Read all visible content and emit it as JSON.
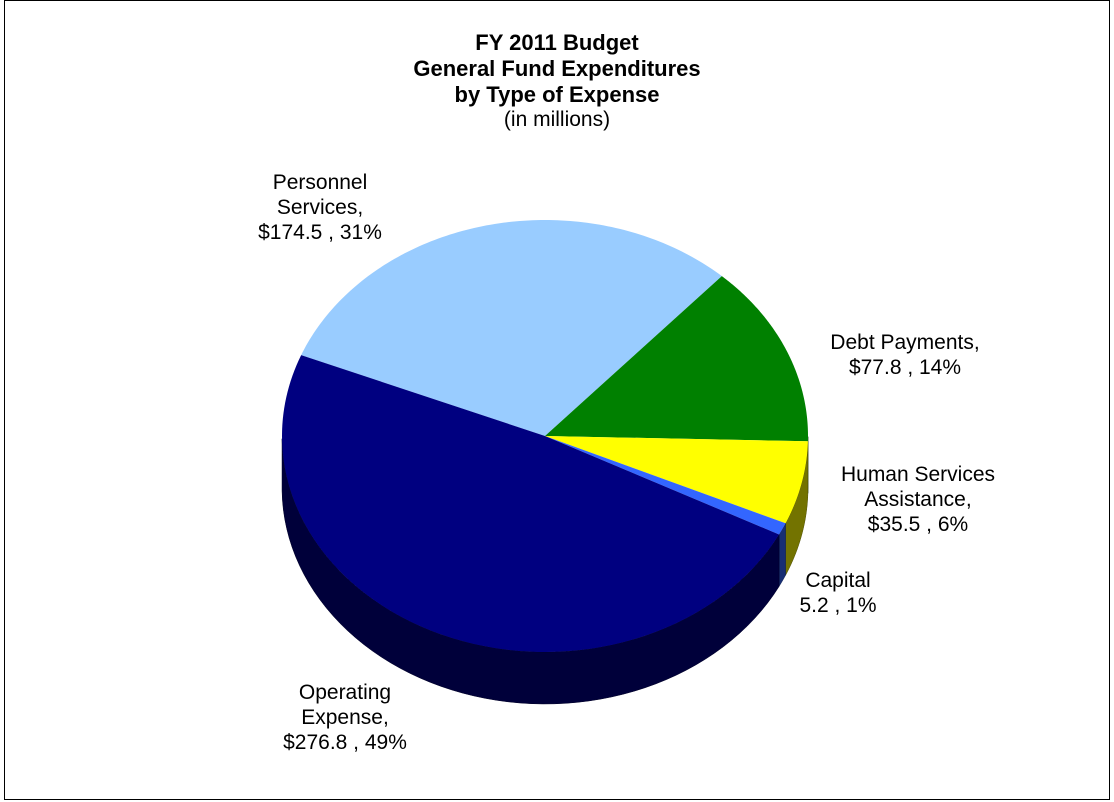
{
  "chart_data": {
    "type": "pie",
    "title": [
      "FY 2011 Budget",
      "General Fund Expenditures",
      "by Type of Expense"
    ],
    "subtitle": "(in millions)",
    "slices": [
      {
        "name": "Personnel Services",
        "value": 174.5,
        "percent": 31,
        "color": "#99CCFF",
        "label_lines": [
          "Personnel",
          "Services,",
          "$174.5 , 31%"
        ]
      },
      {
        "name": "Debt Payments",
        "value": 77.8,
        "percent": 14,
        "color": "#008000",
        "label_lines": [
          "Debt Payments,",
          "$77.8 , 14%"
        ]
      },
      {
        "name": "Human Services Assistance",
        "value": 35.5,
        "percent": 6,
        "color": "#FFFF00",
        "label_lines": [
          "Human Services",
          "Assistance,",
          "$35.5 , 6%"
        ]
      },
      {
        "name": "Capital",
        "value": 5.2,
        "percent": 1,
        "color": "#3366FF",
        "label_lines": [
          "Capital",
          "5.2 , 1%"
        ]
      },
      {
        "name": "Operating Expense",
        "value": 276.8,
        "percent": 49,
        "color": "#000080",
        "label_lines": [
          "Operating",
          "Expense,",
          "$276.8 , 49%"
        ]
      }
    ]
  }
}
